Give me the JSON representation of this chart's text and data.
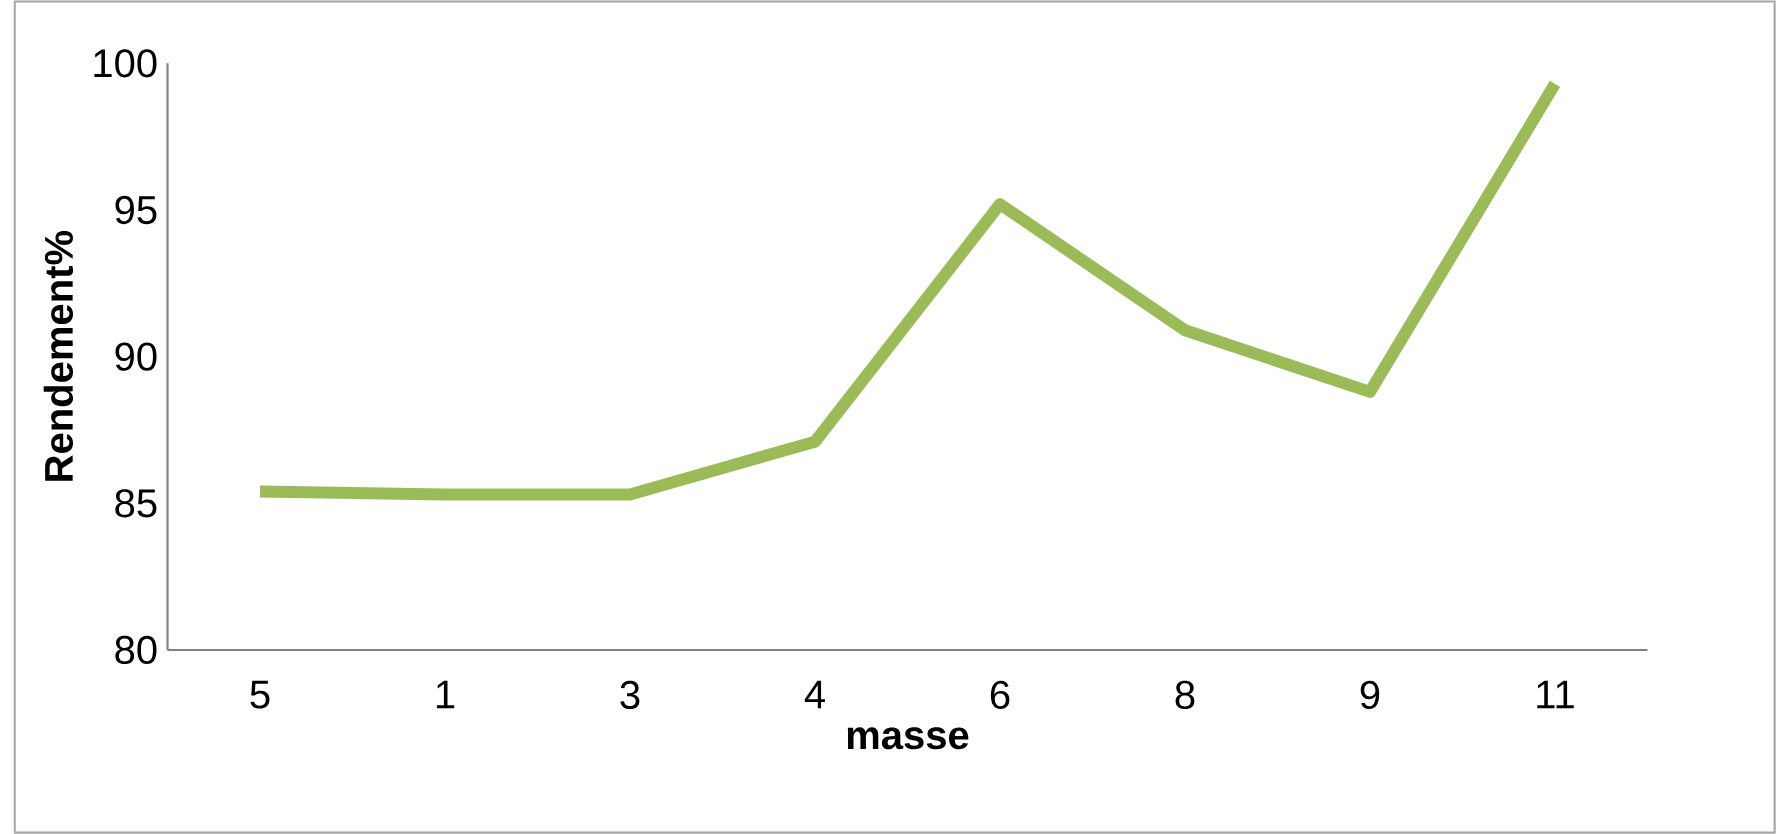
{
  "chart_data": {
    "type": "line",
    "xlabel": "masse",
    "ylabel": "Rendement%",
    "categories": [
      "5",
      "1",
      "3",
      "4",
      "6",
      "8",
      "9",
      "11"
    ],
    "series": [
      {
        "color": "#9bbb59",
        "values": [
          85.4,
          85.3,
          85.3,
          87.1,
          95.2,
          90.9,
          88.8,
          99.3
        ]
      }
    ],
    "ylim": [
      80,
      100
    ],
    "yticks": [
      80,
      85,
      90,
      95,
      100
    ],
    "grid": false,
    "marker": "none",
    "line_style": "solid"
  }
}
